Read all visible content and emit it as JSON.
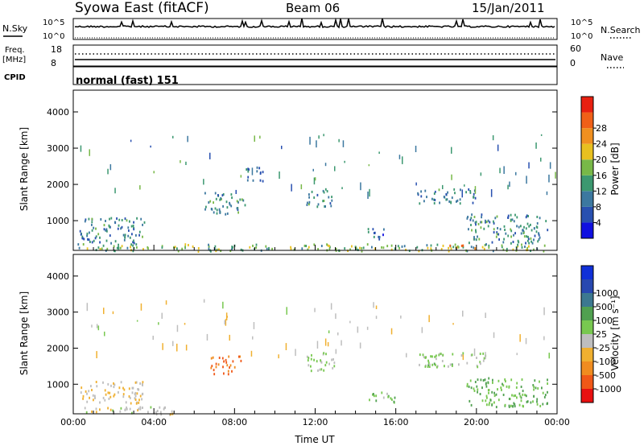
{
  "header": {
    "title": "Syowa East (fitACF)",
    "beam": "Beam 06",
    "date": "15/Jan/2011"
  },
  "meta_panels": {
    "nsky_label": "N.Sky",
    "nsky_ticks": [
      "10^5",
      "10^0"
    ],
    "nsearch_label": "N.Search",
    "nsearch_ticks": [
      "10^5",
      "10^0"
    ],
    "freq_label": "Freq.",
    "freq_unit": "[MHz]",
    "freq_ticks": [
      "18",
      "8"
    ],
    "nave_label": "Nave",
    "nave_ticks": [
      "60",
      "0"
    ],
    "cpid_label": "CPID",
    "cpid_value": "normal (fast) 151"
  },
  "colors": {
    "power": [
      "#1010e0",
      "#2850b0",
      "#3c78a0",
      "#3c9870",
      "#78b848",
      "#e8c020",
      "#f09020",
      "#f06018",
      "#e82010"
    ],
    "velocity": [
      "#e81010",
      "#f05818",
      "#f08c20",
      "#f0b030",
      "#bebebe",
      "#78c850",
      "#50a050",
      "#3c7890",
      "#2848b0",
      "#1030d8"
    ]
  },
  "chart_data": [
    {
      "type": "heatmap",
      "name": "power",
      "ylabel": "Slant Range [km]",
      "y_ticks": [
        "1000",
        "2000",
        "3000",
        "4000"
      ],
      "y_tick_values": [
        1000,
        2000,
        3000,
        4000
      ],
      "ylim": [
        180,
        4600
      ],
      "x_ticks": [
        "00:00",
        "04:00",
        "08:00",
        "12:00",
        "16:00",
        "20:00",
        "00:00"
      ],
      "xlim_hours": [
        0,
        24
      ],
      "colorbar_label": "Power [dB]",
      "colorbar_ticks": [
        "4",
        "8",
        "12",
        "16",
        "20",
        "24",
        "28"
      ],
      "clim": [
        0,
        30
      ],
      "features": [
        {
          "t": [
            0.2,
            24
          ],
          "range": [
            180,
            380
          ],
          "value": 14
        },
        {
          "t": [
            0.3,
            3.5
          ],
          "range": [
            400,
            1100
          ],
          "value": 9
        },
        {
          "t": [
            6.5,
            8.5
          ],
          "range": [
            1200,
            1800
          ],
          "value": 10
        },
        {
          "t": [
            8.5,
            9.5
          ],
          "range": [
            2100,
            2500
          ],
          "value": 8
        },
        {
          "t": [
            11.5,
            12.8
          ],
          "range": [
            1400,
            1900
          ],
          "value": 10
        },
        {
          "t": [
            14.5,
            15.5
          ],
          "range": [
            500,
            800
          ],
          "value": 8
        },
        {
          "t": [
            17.0,
            20.0
          ],
          "range": [
            1500,
            1900
          ],
          "value": 9
        },
        {
          "t": [
            19.5,
            23.5
          ],
          "range": [
            400,
            1200
          ],
          "value": 10
        },
        {
          "t": [
            18.0,
            20.0
          ],
          "range": [
            250,
            350
          ],
          "value": 22
        }
      ]
    },
    {
      "type": "heatmap",
      "name": "velocity",
      "ylabel": "Slant Range [km]",
      "xlabel": "Time UT",
      "y_ticks": [
        "1000",
        "2000",
        "3000",
        "4000"
      ],
      "y_tick_values": [
        1000,
        2000,
        3000,
        4000
      ],
      "ylim": [
        180,
        4600
      ],
      "x_ticks": [
        "00:00",
        "04:00",
        "08:00",
        "12:00",
        "16:00",
        "20:00",
        "00:00"
      ],
      "xlim_hours": [
        0,
        24
      ],
      "colorbar_label": "Velocity [m s⁻¹]",
      "colorbar_ticks": [
        "-1000",
        "-500",
        "-100",
        "-25",
        "25",
        "100",
        "500",
        "1000"
      ],
      "clim": [
        -1500,
        1500
      ],
      "features": [
        {
          "t": [
            0.2,
            5.0
          ],
          "range": [
            180,
            400
          ],
          "value": -200
        },
        {
          "t": [
            0.3,
            3.5
          ],
          "range": [
            500,
            1100
          ],
          "value": -300
        },
        {
          "t": [
            6.8,
            8.3
          ],
          "range": [
            1300,
            1800
          ],
          "value": -900
        },
        {
          "t": [
            11.5,
            13.0
          ],
          "range": [
            1400,
            1900
          ],
          "value": 0
        },
        {
          "t": [
            14.5,
            16.0
          ],
          "range": [
            500,
            800
          ],
          "value": 200
        },
        {
          "t": [
            17.0,
            20.5
          ],
          "range": [
            1500,
            1900
          ],
          "value": 100
        },
        {
          "t": [
            19.5,
            23.5
          ],
          "range": [
            400,
            1200
          ],
          "value": 300
        }
      ]
    }
  ]
}
